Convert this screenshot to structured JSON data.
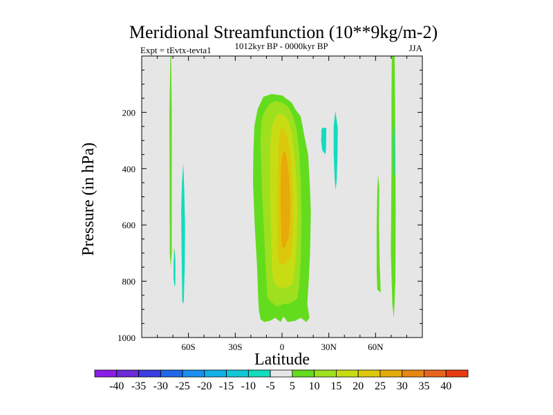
{
  "chart_data": {
    "type": "filled-contour",
    "title": "Meridional Streamfunction (10**9kg/m-2)",
    "experiment": "Expt = tEvtx-tevta1",
    "period": "1012kyr BP - 0000kyr BP",
    "season": "JJA",
    "xlabel": "Latitude",
    "ylabel": "Pressure (in hPa)",
    "xlim": [
      -90,
      90
    ],
    "ylim": [
      1000,
      0
    ],
    "x_ticks": [
      {
        "value": -60,
        "label": "60S"
      },
      {
        "value": -30,
        "label": "30S"
      },
      {
        "value": 0,
        "label": "0"
      },
      {
        "value": 30,
        "label": "30N"
      },
      {
        "value": 60,
        "label": "60N"
      }
    ],
    "y_ticks": [
      {
        "value": 200,
        "label": "200"
      },
      {
        "value": 400,
        "label": "400"
      },
      {
        "value": 600,
        "label": "600"
      },
      {
        "value": 800,
        "label": "800"
      },
      {
        "value": 1000,
        "label": "1000"
      }
    ],
    "colorbar": {
      "levels": [
        -40,
        -35,
        -30,
        -25,
        -20,
        -15,
        -10,
        -5,
        5,
        10,
        15,
        20,
        25,
        30,
        35,
        40
      ],
      "labels": [
        "-40",
        "-35",
        "-30",
        "-25",
        "-20",
        "-15",
        "-10",
        "-5",
        "5",
        "10",
        "15",
        "20",
        "25",
        "30",
        "35",
        "40"
      ],
      "colors": [
        "#8a1ee6",
        "#6a2cd6",
        "#3a3ee0",
        "#1f68e8",
        "#1a8ff0",
        "#12b0e8",
        "#12c8d8",
        "#12dcbe",
        "#e6e6e6",
        "#64dc1e",
        "#9ee01e",
        "#c8dc14",
        "#dcc80a",
        "#e6aa0a",
        "#e68714",
        "#e6641e",
        "#e63c14"
      ]
    },
    "background_color": "#e6e6e6",
    "regions": [
      {
        "name": "central-cell-5",
        "level_min": 5,
        "color": "#64dc1e",
        "points": [
          [
            -15.2,
            870
          ],
          [
            -16,
            750
          ],
          [
            -17.5,
            600
          ],
          [
            -18.6,
            450
          ],
          [
            -18.4,
            350
          ],
          [
            -17.8,
            250
          ],
          [
            -15.7,
            190
          ],
          [
            -12,
            145
          ],
          [
            -6.7,
            135
          ],
          [
            0,
            140
          ],
          [
            6.2,
            165
          ],
          [
            8.6,
            190
          ],
          [
            12,
            215
          ],
          [
            14.2,
            280
          ],
          [
            16.7,
            350
          ],
          [
            17.8,
            450
          ],
          [
            18.5,
            550
          ],
          [
            18,
            700
          ],
          [
            17.1,
            800
          ],
          [
            16.2,
            880
          ],
          [
            17.6,
            930
          ],
          [
            15.5,
            945
          ],
          [
            12,
            930
          ],
          [
            8.7,
            940
          ],
          [
            3.6,
            945
          ],
          [
            0.9,
            925
          ],
          [
            -0.9,
            945
          ],
          [
            -4.4,
            930
          ],
          [
            -7.5,
            940
          ],
          [
            -11.5,
            945
          ],
          [
            -13.8,
            935
          ],
          [
            -14.8,
            905
          ]
        ]
      },
      {
        "name": "central-cell-10",
        "level_min": 10,
        "color": "#9ee01e",
        "points": [
          [
            -10,
            800
          ],
          [
            -11.3,
            650
          ],
          [
            -12.7,
            500
          ],
          [
            -13.3,
            400
          ],
          [
            -13.8,
            300
          ],
          [
            -13.1,
            230
          ],
          [
            -11.6,
            200
          ],
          [
            -8,
            170
          ],
          [
            -4.4,
            160
          ],
          [
            0,
            165
          ],
          [
            4,
            180
          ],
          [
            7.1,
            215
          ],
          [
            9.3,
            260
          ],
          [
            11.1,
            350
          ],
          [
            12,
            450
          ],
          [
            12.5,
            600
          ],
          [
            12,
            720
          ],
          [
            11.1,
            810
          ],
          [
            10,
            860
          ],
          [
            7.6,
            870
          ],
          [
            4.4,
            880
          ],
          [
            0.9,
            880
          ],
          [
            -3.1,
            890
          ],
          [
            -6.7,
            875
          ],
          [
            -9.3,
            860
          ]
        ]
      },
      {
        "name": "central-cell-15",
        "level_min": 15,
        "color": "#c8dc14",
        "points": [
          [
            -6.2,
            770
          ],
          [
            -7.1,
            620
          ],
          [
            -7.6,
            500
          ],
          [
            -7.8,
            400
          ],
          [
            -7.5,
            300
          ],
          [
            -6,
            240
          ],
          [
            -3.6,
            210
          ],
          [
            0,
            205
          ],
          [
            3.6,
            225
          ],
          [
            6.2,
            270
          ],
          [
            8,
            350
          ],
          [
            9.3,
            450
          ],
          [
            9.8,
            550
          ],
          [
            9.3,
            650
          ],
          [
            8.4,
            740
          ],
          [
            6.7,
            810
          ],
          [
            3.6,
            820
          ],
          [
            0,
            825
          ],
          [
            -3.6,
            815
          ],
          [
            -5.3,
            800
          ]
        ]
      },
      {
        "name": "central-cell-20",
        "level_min": 20,
        "color": "#dcc80a",
        "points": [
          [
            -2.7,
            700
          ],
          [
            -3.1,
            600
          ],
          [
            -3.1,
            500
          ],
          [
            -2.7,
            400
          ],
          [
            -2.2,
            300
          ],
          [
            -0.9,
            255
          ],
          [
            1.3,
            260
          ],
          [
            3.6,
            290
          ],
          [
            5.3,
            350
          ],
          [
            6.7,
            450
          ],
          [
            7.1,
            550
          ],
          [
            6.7,
            650
          ],
          [
            5.3,
            720
          ],
          [
            1.8,
            740
          ],
          [
            -0.9,
            740
          ],
          [
            -2.2,
            730
          ]
        ]
      },
      {
        "name": "central-cell-25",
        "level_min": 25,
        "color": "#e6aa0a",
        "points": [
          [
            -0.4,
            650
          ],
          [
            -0.9,
            550
          ],
          [
            -0.9,
            450
          ],
          [
            -0.4,
            370
          ],
          [
            0.9,
            335
          ],
          [
            2.7,
            350
          ],
          [
            4.4,
            420
          ],
          [
            5.3,
            520
          ],
          [
            4.9,
            600
          ],
          [
            4,
            650
          ],
          [
            1.8,
            680
          ],
          [
            0,
            680
          ]
        ]
      },
      {
        "name": "polar-south-line-5",
        "level_min": 5,
        "color": "#64dc1e",
        "points": [
          [
            -71.6,
            0
          ],
          [
            -71.1,
            0
          ],
          [
            -70.7,
            200
          ],
          [
            -70.7,
            700
          ],
          [
            -71.4,
            750
          ],
          [
            -72,
            700
          ],
          [
            -72.2,
            200
          ]
        ]
      },
      {
        "name": "south-pos-small",
        "level_min": 5,
        "color": "#64dc1e",
        "points": [
          [
            -69.3,
            680
          ],
          [
            -69.3,
            770
          ],
          [
            -68.9,
            760
          ],
          [
            -68.9,
            690
          ]
        ]
      },
      {
        "name": "south-neg-5a",
        "level_min": -10,
        "color": "#12dcbe",
        "points": [
          [
            -68.9,
            690
          ],
          [
            -68.4,
            720
          ],
          [
            -68.4,
            810
          ],
          [
            -68.9,
            820
          ],
          [
            -69.6,
            790
          ],
          [
            -69.6,
            730
          ]
        ]
      },
      {
        "name": "south-neg-5b",
        "level_min": -10,
        "color": "#12dcbe",
        "points": [
          [
            -63.3,
            380
          ],
          [
            -62.7,
            480
          ],
          [
            -62.2,
            600
          ],
          [
            -62.4,
            750
          ],
          [
            -63.1,
            880
          ],
          [
            -64,
            870
          ],
          [
            -64.4,
            700
          ],
          [
            -64.7,
            550
          ],
          [
            -64.2,
            450
          ]
        ]
      },
      {
        "name": "mid-neg-5a",
        "level_min": -10,
        "color": "#12dcbe",
        "points": [
          [
            25.3,
            258
          ],
          [
            26.4,
            255
          ],
          [
            28.4,
            255
          ],
          [
            28.2,
            330
          ],
          [
            27.8,
            350
          ],
          [
            25.8,
            335
          ],
          [
            25.1,
            300
          ]
        ]
      },
      {
        "name": "mid-neg-5b",
        "level_min": -10,
        "color": "#12dcbe",
        "points": [
          [
            34.2,
            195
          ],
          [
            35.8,
            255
          ],
          [
            35.6,
            350
          ],
          [
            35.1,
            440
          ],
          [
            34.4,
            475
          ],
          [
            33.8,
            440
          ],
          [
            33.1,
            350
          ],
          [
            33.1,
            250
          ]
        ]
      },
      {
        "name": "north-pos-5a",
        "level_min": 5,
        "color": "#64dc1e",
        "points": [
          [
            61.6,
            420
          ],
          [
            62.4,
            470
          ],
          [
            62.2,
            600
          ],
          [
            62.7,
            750
          ],
          [
            63.3,
            840
          ],
          [
            61.1,
            830
          ],
          [
            60.7,
            760
          ],
          [
            60.7,
            600
          ],
          [
            61.1,
            480
          ]
        ]
      },
      {
        "name": "north-pos-5b",
        "level_min": 5,
        "color": "#64dc1e",
        "points": [
          [
            70.4,
            0
          ],
          [
            72.2,
            0
          ],
          [
            72.4,
            100
          ],
          [
            72.7,
            350
          ],
          [
            72.9,
            550
          ],
          [
            72.7,
            800
          ],
          [
            71.8,
            930
          ],
          [
            70.7,
            880
          ],
          [
            69.8,
            700
          ],
          [
            70.2,
            400
          ],
          [
            70.2,
            150
          ]
        ]
      },
      {
        "name": "north-neg-5-inner",
        "level_min": -10,
        "color": "#12dcbe",
        "points": [
          [
            71.6,
            200
          ],
          [
            72.2,
            300
          ],
          [
            72.2,
            420
          ],
          [
            71.4,
            430
          ],
          [
            71.1,
            300
          ]
        ]
      }
    ]
  }
}
